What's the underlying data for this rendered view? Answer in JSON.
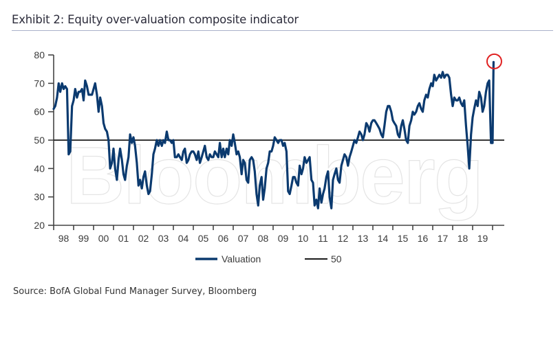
{
  "header": {
    "title": "Exhibit 2: Equity over-valuation composite indicator"
  },
  "footer": {
    "source": "Source: BofA Global Fund Manager Survey, Bloomberg"
  },
  "watermark": "Bloomberg",
  "colors": {
    "valuation": "#0b3a6f",
    "valuation_light": "#4f76a3",
    "reference": "#1a1a1a",
    "highlight_circle": "#e02020",
    "axis": "#444444",
    "title_rule": "#a9b1c9"
  },
  "chart_data": {
    "type": "line",
    "title": "Exhibit 2: Equity over-valuation composite indicator",
    "xlabel": "",
    "ylabel": "",
    "ylim": [
      20,
      80
    ],
    "yticks": [
      20,
      30,
      40,
      50,
      60,
      70,
      80
    ],
    "xlim": [
      1998.0,
      2020.6
    ],
    "xtick_labels": [
      "98",
      "99",
      "00",
      "01",
      "02",
      "03",
      "04",
      "05",
      "06",
      "07",
      "08",
      "09",
      "10",
      "11",
      "12",
      "13",
      "14",
      "15",
      "16",
      "17",
      "18",
      "19"
    ],
    "grid": false,
    "legend": {
      "placement": "bottom-center",
      "entries": [
        "Valuation",
        "50"
      ]
    },
    "annotation": {
      "type": "circle",
      "target": "latest value",
      "x": 2020.05,
      "y": 77.5
    },
    "series": [
      {
        "name": "Valuation",
        "x": [
          1998.0,
          1998.08,
          1998.17,
          1998.25,
          1998.33,
          1998.42,
          1998.5,
          1998.58,
          1998.67,
          1998.75,
          1998.83,
          1998.92,
          1999.0,
          1999.08,
          1999.17,
          1999.25,
          1999.33,
          1999.42,
          1999.5,
          1999.58,
          1999.67,
          1999.75,
          1999.83,
          1999.92,
          2000.0,
          2000.08,
          2000.17,
          2000.25,
          2000.33,
          2000.42,
          2000.5,
          2000.58,
          2000.67,
          2000.75,
          2000.83,
          2000.92,
          2001.0,
          2001.08,
          2001.17,
          2001.25,
          2001.33,
          2001.42,
          2001.5,
          2001.58,
          2001.67,
          2001.75,
          2001.83,
          2001.92,
          2002.0,
          2002.08,
          2002.17,
          2002.25,
          2002.33,
          2002.42,
          2002.5,
          2002.58,
          2002.67,
          2002.75,
          2002.83,
          2002.92,
          2003.0,
          2003.08,
          2003.17,
          2003.25,
          2003.33,
          2003.42,
          2003.5,
          2003.58,
          2003.67,
          2003.75,
          2003.83,
          2003.92,
          2004.0,
          2004.08,
          2004.17,
          2004.25,
          2004.33,
          2004.42,
          2004.5,
          2004.58,
          2004.67,
          2004.75,
          2004.83,
          2004.92,
          2005.0,
          2005.08,
          2005.17,
          2005.25,
          2005.33,
          2005.42,
          2005.5,
          2005.58,
          2005.67,
          2005.75,
          2005.83,
          2005.92,
          2006.0,
          2006.08,
          2006.17,
          2006.25,
          2006.33,
          2006.42,
          2006.5,
          2006.58,
          2006.67,
          2006.75,
          2006.83,
          2006.92,
          2007.0,
          2007.08,
          2007.17,
          2007.25,
          2007.33,
          2007.42,
          2007.5,
          2007.58,
          2007.67,
          2007.75,
          2007.83,
          2007.92,
          2008.0,
          2008.08,
          2008.17,
          2008.25,
          2008.33,
          2008.42,
          2008.5,
          2008.58,
          2008.67,
          2008.75,
          2008.83,
          2008.92,
          2009.0,
          2009.08,
          2009.17,
          2009.25,
          2009.33,
          2009.42,
          2009.5,
          2009.58,
          2009.67,
          2009.75,
          2009.83,
          2009.92,
          2010.0,
          2010.08,
          2010.17,
          2010.25,
          2010.33,
          2010.42,
          2010.5,
          2010.58,
          2010.67,
          2010.75,
          2010.83,
          2010.92,
          2011.0,
          2011.08,
          2011.17,
          2011.25,
          2011.33,
          2011.42,
          2011.5,
          2011.58,
          2011.67,
          2011.75,
          2011.83,
          2011.92,
          2012.0,
          2012.08,
          2012.17,
          2012.25,
          2012.33,
          2012.42,
          2012.5,
          2012.58,
          2012.67,
          2012.75,
          2012.83,
          2012.92,
          2013.0,
          2013.08,
          2013.17,
          2013.25,
          2013.33,
          2013.42,
          2013.5,
          2013.58,
          2013.67,
          2013.75,
          2013.83,
          2013.92,
          2014.0,
          2014.08,
          2014.17,
          2014.25,
          2014.33,
          2014.42,
          2014.5,
          2014.58,
          2014.67,
          2014.75,
          2014.83,
          2014.92,
          2015.0,
          2015.08,
          2015.17,
          2015.25,
          2015.33,
          2015.42,
          2015.5,
          2015.58,
          2015.67,
          2015.75,
          2015.83,
          2015.92,
          2016.0,
          2016.08,
          2016.17,
          2016.25,
          2016.33,
          2016.42,
          2016.5,
          2016.58,
          2016.67,
          2016.75,
          2016.83,
          2016.92,
          2017.0,
          2017.08,
          2017.17,
          2017.25,
          2017.33,
          2017.42,
          2017.5,
          2017.58,
          2017.67,
          2017.75,
          2017.83,
          2017.92,
          2018.0,
          2018.08,
          2018.17,
          2018.25,
          2018.33,
          2018.42,
          2018.5,
          2018.58,
          2018.67,
          2018.75,
          2018.83,
          2018.92,
          2019.0,
          2019.08,
          2019.17,
          2019.25,
          2019.33,
          2019.42,
          2019.5,
          2019.58,
          2019.67,
          2019.75,
          2019.83,
          2019.92,
          2020.0,
          2020.05
        ],
        "values": [
          61,
          62,
          65,
          70,
          67,
          70,
          68,
          69,
          68,
          45,
          46,
          62,
          64,
          68,
          65,
          67,
          67,
          68,
          64,
          71,
          69,
          66,
          66,
          66,
          68,
          70,
          66,
          60,
          65,
          62,
          56,
          54,
          53,
          50,
          40,
          42,
          47,
          40,
          36,
          43,
          47,
          43,
          38,
          36,
          41,
          44,
          52,
          49,
          51,
          48,
          42,
          34,
          36,
          33,
          37,
          39,
          34,
          31,
          32,
          38,
          45,
          47,
          50,
          48,
          50,
          48,
          50,
          49,
          53,
          50,
          50,
          49,
          50,
          44,
          44,
          45,
          44,
          43,
          46,
          47,
          42,
          43,
          45,
          46,
          46,
          45,
          43,
          46,
          42,
          44,
          46,
          48,
          44,
          43,
          45,
          44,
          44,
          46,
          45,
          44,
          49,
          44,
          47,
          44,
          47,
          45,
          50,
          48,
          52,
          49,
          45,
          46,
          44,
          38,
          43,
          42,
          36,
          35,
          43,
          44,
          43,
          39,
          31,
          27,
          34,
          37,
          29,
          33,
          40,
          42,
          46,
          46,
          48,
          51,
          50,
          49,
          50,
          50,
          48,
          49,
          46,
          32,
          31,
          34,
          37,
          37,
          35,
          34,
          41,
          38,
          40,
          44,
          42,
          43,
          44,
          36,
          35,
          27,
          29,
          26,
          33,
          28,
          31,
          33,
          37,
          39,
          30,
          26,
          36,
          38,
          40,
          36,
          35,
          41,
          43,
          45,
          44,
          41,
          44,
          46,
          48,
          50,
          49,
          51,
          53,
          52,
          50,
          52,
          56,
          55,
          53,
          56,
          57,
          57,
          56,
          55,
          54,
          52,
          51,
          55,
          60,
          62,
          62,
          60,
          57,
          56,
          55,
          52,
          51,
          55,
          57,
          54,
          50,
          49,
          55,
          57,
          60,
          59,
          60,
          62,
          63,
          61,
          60,
          64,
          66,
          65,
          68,
          70,
          69,
          73,
          71,
          72,
          73,
          72,
          74,
          72,
          73,
          73,
          72,
          66,
          62,
          65,
          64,
          64,
          65,
          63,
          62,
          64,
          55,
          48,
          40,
          52,
          58,
          61,
          64,
          62,
          67,
          65,
          60,
          62,
          67,
          70,
          71,
          49,
          49,
          77.5
        ]
      },
      {
        "name": "50",
        "x": [
          1998.0,
          2020.6
        ],
        "values": [
          50,
          50
        ]
      }
    ]
  }
}
